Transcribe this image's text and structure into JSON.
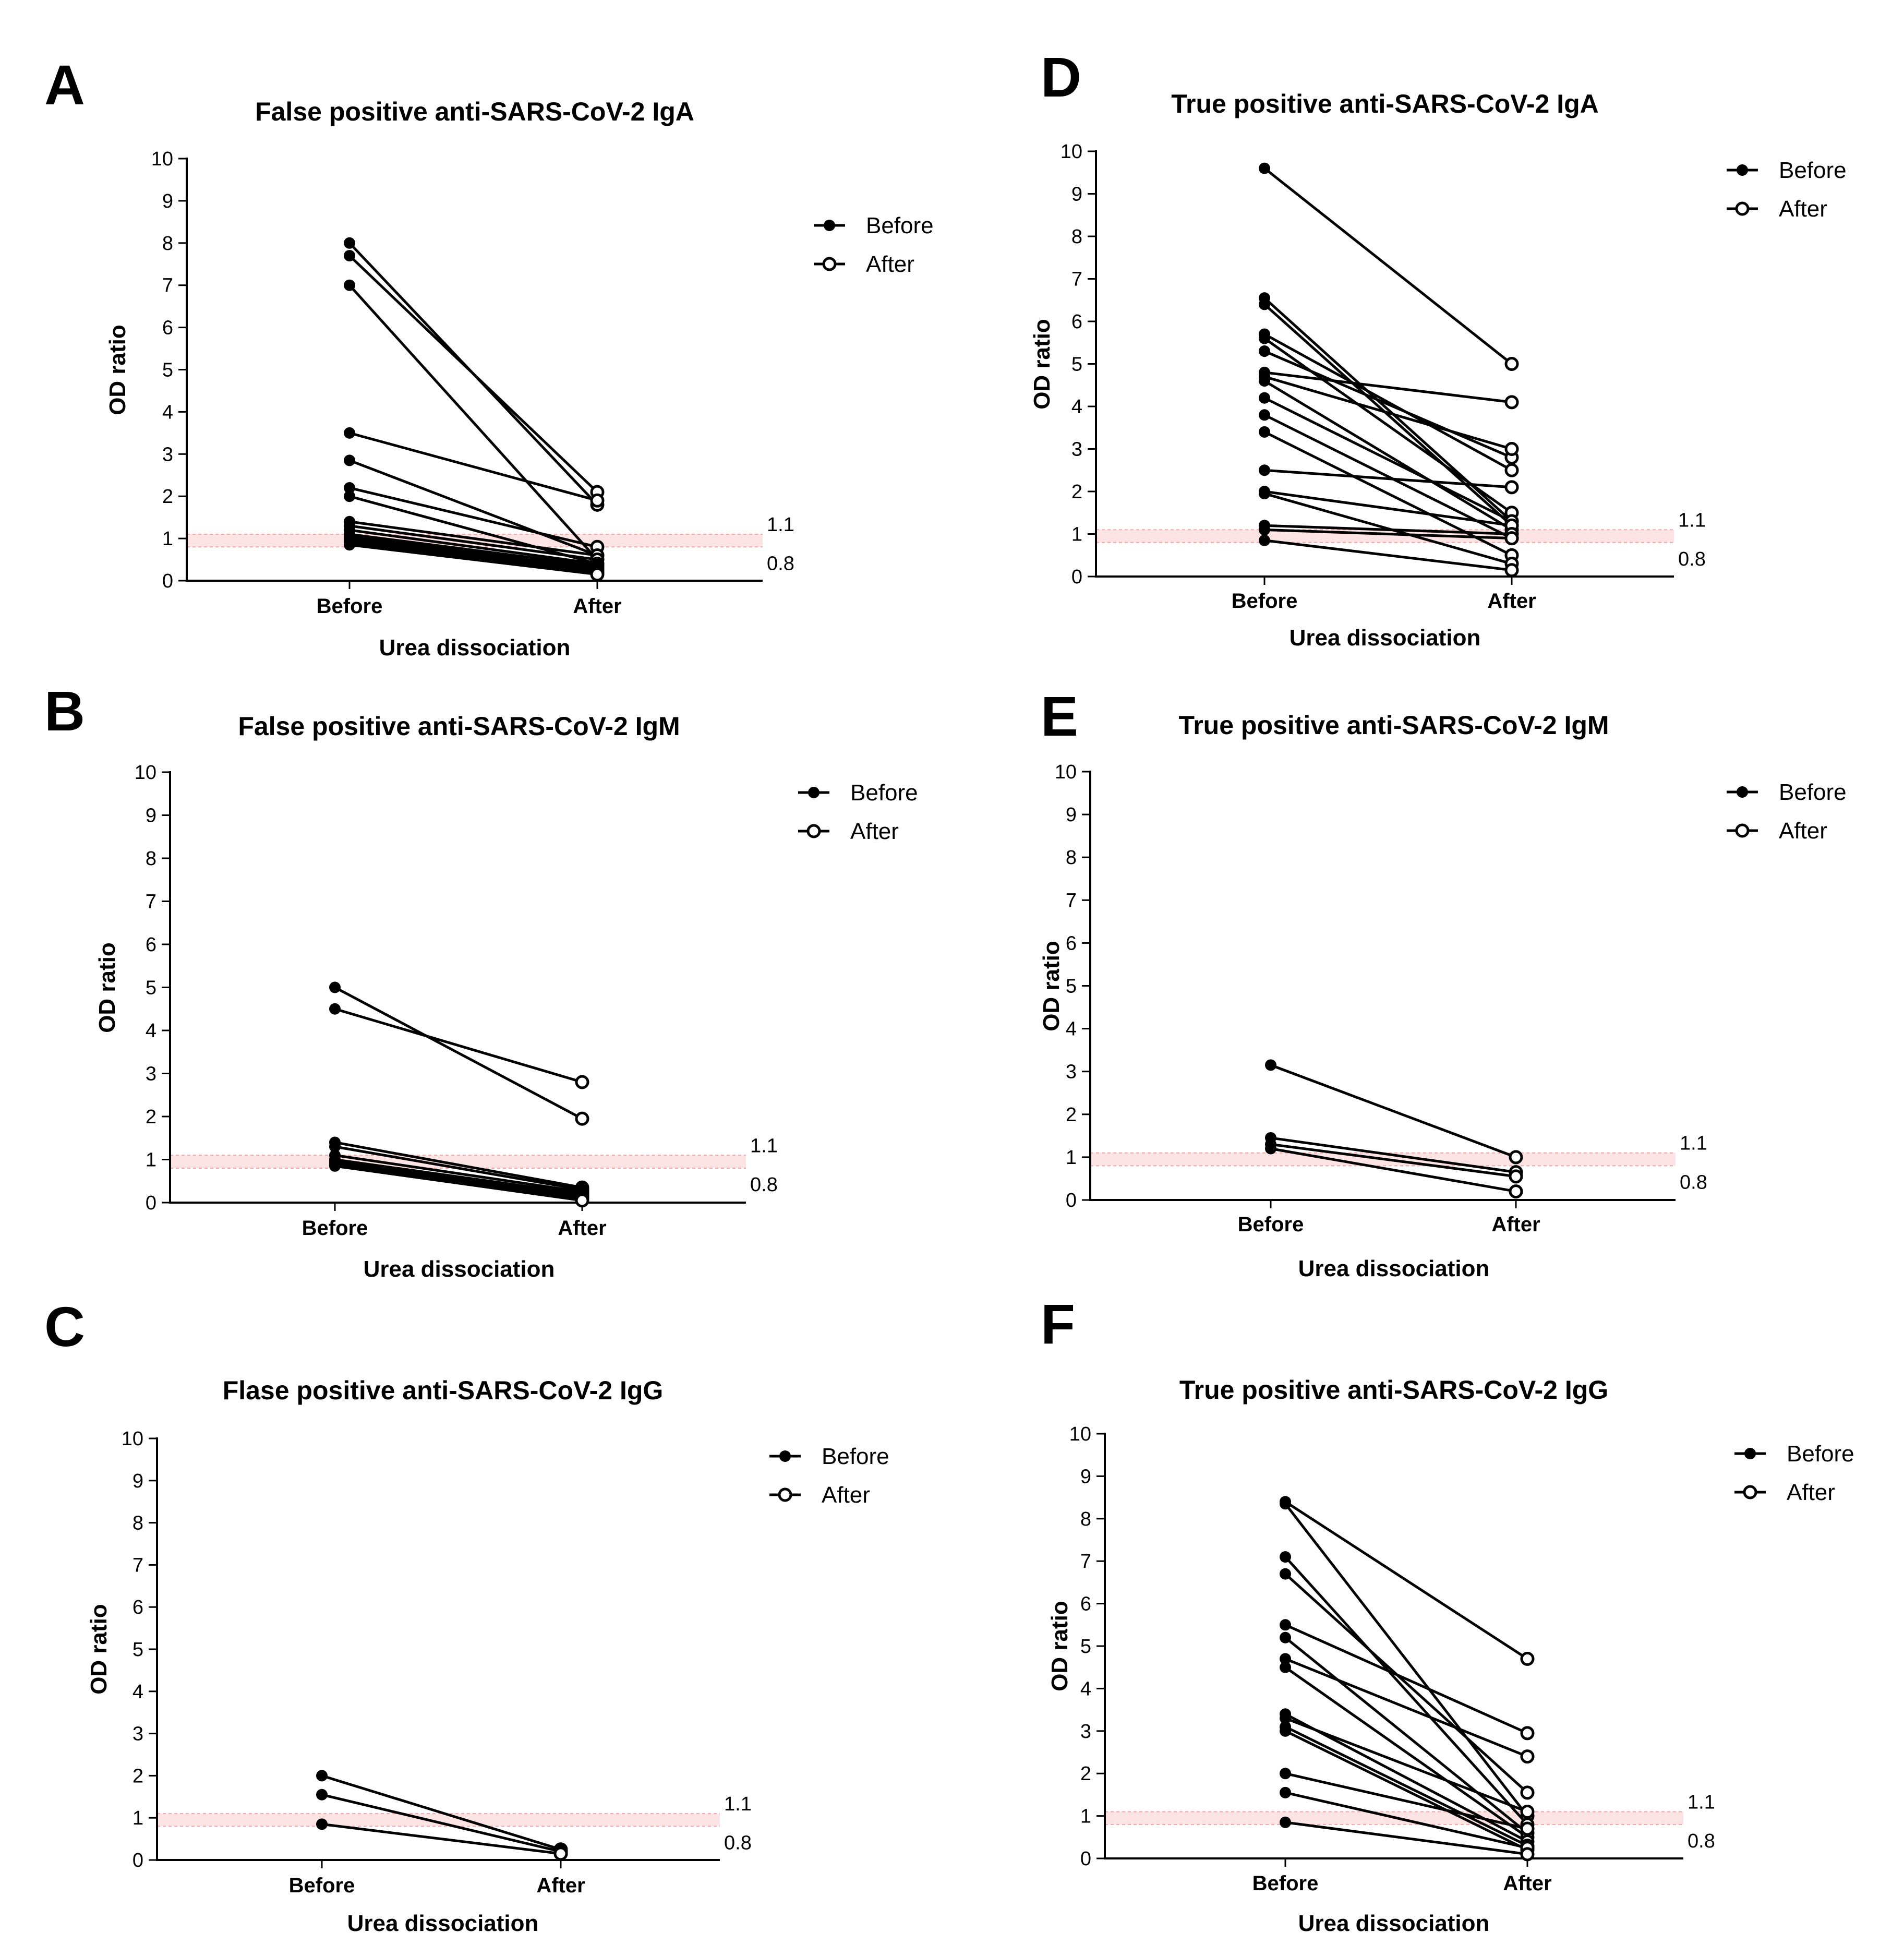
{
  "figure": {
    "threshold_labels": {
      "upper": "1.1",
      "lower": "0.8"
    },
    "legend_labels": {
      "before": "Before",
      "after": "After"
    }
  },
  "chart_data": [
    {
      "letter": "A",
      "type": "line",
      "title": "False positive anti-SARS-CoV-2 IgA",
      "xlabel": "Urea dissociation",
      "ylabel": "OD ratio",
      "categories": [
        "Before",
        "After"
      ],
      "ylim": [
        0,
        10
      ],
      "yticks": [
        "0",
        "1",
        "2",
        "3",
        "4",
        "5",
        "6",
        "7",
        "8",
        "9",
        "10"
      ],
      "threshold_band": [
        0.8,
        1.1
      ],
      "legend": [
        "Before",
        "After"
      ],
      "pairs": [
        [
          8.0,
          1.8
        ],
        [
          7.7,
          2.1
        ],
        [
          7.0,
          0.5
        ],
        [
          3.5,
          1.9
        ],
        [
          2.85,
          0.6
        ],
        [
          2.2,
          0.8
        ],
        [
          2.0,
          0.4
        ],
        [
          1.4,
          0.6
        ],
        [
          1.3,
          0.5
        ],
        [
          1.2,
          0.4
        ],
        [
          1.1,
          0.35
        ],
        [
          1.05,
          0.3
        ],
        [
          1.0,
          0.25
        ],
        [
          0.95,
          0.2
        ],
        [
          0.9,
          0.2
        ],
        [
          0.85,
          0.15
        ]
      ]
    },
    {
      "letter": "B",
      "type": "line",
      "title": "False positive anti-SARS-CoV-2 IgM",
      "xlabel": "Urea dissociation",
      "ylabel": "OD ratio",
      "categories": [
        "Before",
        "After"
      ],
      "ylim": [
        0,
        10
      ],
      "yticks": [
        "0",
        "1",
        "2",
        "3",
        "4",
        "5",
        "6",
        "7",
        "8",
        "9",
        "10"
      ],
      "threshold_band": [
        0.8,
        1.1
      ],
      "legend": [
        "Before",
        "After"
      ],
      "pairs": [
        [
          5.0,
          1.95
        ],
        [
          4.5,
          2.8
        ],
        [
          1.4,
          0.35
        ],
        [
          1.3,
          0.3
        ],
        [
          1.1,
          0.25
        ],
        [
          1.0,
          0.2
        ],
        [
          0.95,
          0.15
        ],
        [
          0.9,
          0.1
        ],
        [
          0.85,
          0.05
        ]
      ]
    },
    {
      "letter": "C",
      "type": "line",
      "title": "Flase positive anti-SARS-CoV-2 IgG",
      "xlabel": "Urea dissociation",
      "ylabel": "OD ratio",
      "categories": [
        "Before",
        "After"
      ],
      "ylim": [
        0,
        10
      ],
      "yticks": [
        "0",
        "1",
        "2",
        "3",
        "4",
        "5",
        "6",
        "7",
        "8",
        "9",
        "10"
      ],
      "threshold_band": [
        0.8,
        1.1
      ],
      "legend": [
        "Before",
        "After"
      ],
      "pairs": [
        [
          2.0,
          0.25
        ],
        [
          1.55,
          0.2
        ],
        [
          0.85,
          0.15
        ]
      ]
    },
    {
      "letter": "D",
      "type": "line",
      "title": "True positive anti-SARS-CoV-2 IgA",
      "xlabel": "Urea dissociation",
      "ylabel": "OD ratio",
      "categories": [
        "Before",
        "After"
      ],
      "ylim": [
        0,
        10
      ],
      "yticks": [
        "0",
        "1",
        "2",
        "3",
        "4",
        "5",
        "6",
        "7",
        "8",
        "9",
        "10"
      ],
      "threshold_band": [
        0.8,
        1.1
      ],
      "legend": [
        "Before",
        "After"
      ],
      "pairs": [
        [
          9.6,
          5.0
        ],
        [
          6.55,
          1.3
        ],
        [
          6.4,
          1.2
        ],
        [
          5.7,
          2.5
        ],
        [
          5.6,
          1.5
        ],
        [
          5.3,
          2.8
        ],
        [
          4.8,
          4.1
        ],
        [
          4.7,
          3.0
        ],
        [
          4.6,
          1.1
        ],
        [
          4.2,
          1.3
        ],
        [
          3.8,
          0.9
        ],
        [
          3.4,
          0.5
        ],
        [
          2.5,
          2.1
        ],
        [
          2.0,
          1.2
        ],
        [
          1.95,
          0.3
        ],
        [
          1.2,
          1.0
        ],
        [
          1.1,
          0.9
        ],
        [
          0.85,
          0.15
        ]
      ]
    },
    {
      "letter": "E",
      "type": "line",
      "title": "True positive anti-SARS-CoV-2 IgM",
      "xlabel": "Urea dissociation",
      "ylabel": "OD ratio",
      "categories": [
        "Before",
        "After"
      ],
      "ylim": [
        0,
        10
      ],
      "yticks": [
        "0",
        "1",
        "2",
        "3",
        "4",
        "5",
        "6",
        "7",
        "8",
        "9",
        "10"
      ],
      "threshold_band": [
        0.8,
        1.1
      ],
      "legend": [
        "Before",
        "After"
      ],
      "pairs": [
        [
          3.15,
          1.0
        ],
        [
          1.45,
          0.65
        ],
        [
          1.3,
          0.55
        ],
        [
          1.2,
          0.2
        ]
      ]
    },
    {
      "letter": "F",
      "type": "line",
      "title": "True positive anti-SARS-CoV-2 IgG",
      "xlabel": "Urea dissociation",
      "ylabel": "OD ratio",
      "categories": [
        "Before",
        "After"
      ],
      "ylim": [
        0,
        10
      ],
      "yticks": [
        "0",
        "1",
        "2",
        "3",
        "4",
        "5",
        "6",
        "7",
        "8",
        "9",
        "10"
      ],
      "threshold_band": [
        0.8,
        1.1
      ],
      "legend": [
        "Before",
        "After"
      ],
      "pairs": [
        [
          8.4,
          4.7
        ],
        [
          8.35,
          1.0
        ],
        [
          7.1,
          0.8
        ],
        [
          6.7,
          1.55
        ],
        [
          5.5,
          2.95
        ],
        [
          5.2,
          0.6
        ],
        [
          4.7,
          2.4
        ],
        [
          4.5,
          0.5
        ],
        [
          3.4,
          0.4
        ],
        [
          3.3,
          1.1
        ],
        [
          3.1,
          0.3
        ],
        [
          3.0,
          0.2
        ],
        [
          2.0,
          0.7
        ],
        [
          1.55,
          0.25
        ],
        [
          0.85,
          0.1
        ]
      ]
    }
  ]
}
